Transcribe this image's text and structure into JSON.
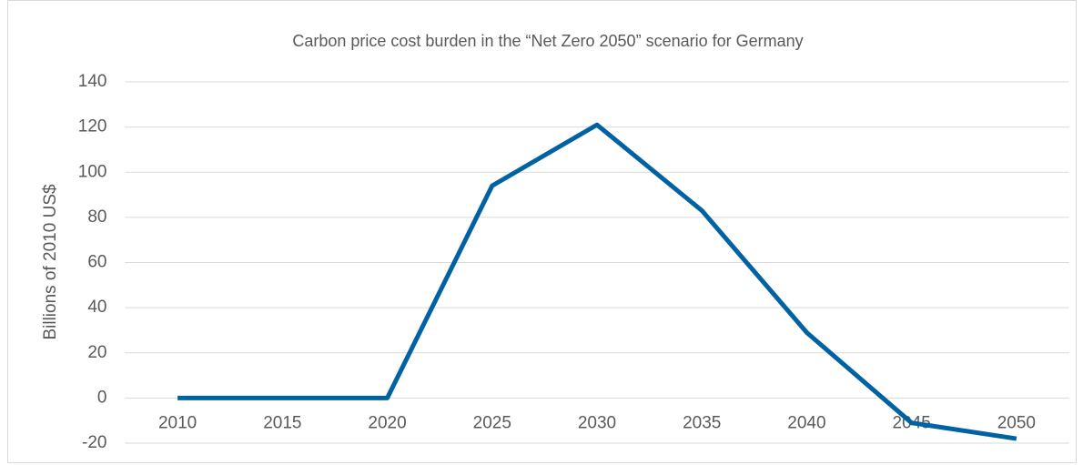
{
  "chart_data": {
    "type": "line",
    "title": "Carbon price cost burden in the “Net Zero 2050” scenario for Germany",
    "y_label": "Billions  of 2010 US$",
    "categories": [
      "2010",
      "2015",
      "2020",
      "2025",
      "2030",
      "2035",
      "2040",
      "2045",
      "2050"
    ],
    "series": [
      {
        "name": "Carbon price cost burden",
        "color": "#0062a3",
        "values": [
          0,
          0,
          0,
          94,
          121,
          83,
          29,
          -11,
          -18
        ]
      }
    ],
    "ylim": [
      -20,
      140
    ],
    "yticks": [
      -20,
      0,
      20,
      40,
      60,
      80,
      100,
      120,
      140
    ],
    "grid": true
  }
}
